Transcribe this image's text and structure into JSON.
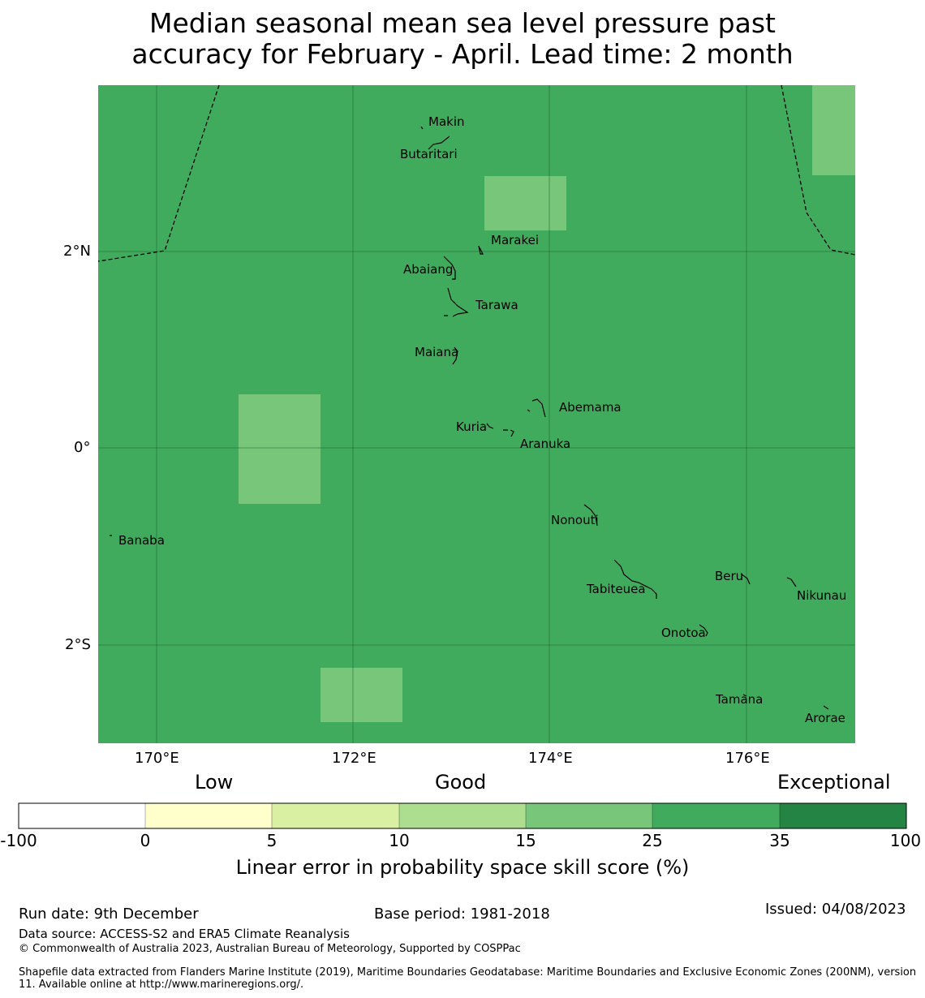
{
  "title_line1": "Median seasonal mean sea level pressure past",
  "title_line2": "accuracy for February - April. Lead time: 2 month",
  "map": {
    "background_color": "#41ab5d",
    "highlight_color": "#78c679",
    "lon_ticks": [
      "170°E",
      "172°E",
      "174°E",
      "176°E"
    ],
    "lat_ticks": [
      "2°N",
      "0°",
      "2°S"
    ],
    "islands": [
      "Makin",
      "Butaritari",
      "Marakei",
      "Abaiang",
      "Tarawa",
      "Maiana",
      "Abemama",
      "Kuria",
      "Aranuka",
      "Nonouti",
      "Banaba",
      "Beru",
      "Tabiteuea",
      "Nikunau",
      "Onotoa",
      "Tamana",
      "Arorae"
    ]
  },
  "colorbar": {
    "category_labels": [
      "Low",
      "Good",
      "Exceptional"
    ],
    "ticks": [
      "-100",
      "0",
      "5",
      "10",
      "15",
      "25",
      "35",
      "100"
    ],
    "colors": [
      "#ffffff",
      "#ffffcc",
      "#d9f0a3",
      "#addd8e",
      "#78c679",
      "#41ab5d",
      "#238443"
    ],
    "title": "Linear error in probability space skill score (%)"
  },
  "footer": {
    "run_date": "Run date: 9th December",
    "base_period": "Base period: 1981-2018",
    "issued": "Issued: 04/08/2023",
    "data_source": "Data source: ACCESS-S2 and ERA5 Climate Reanalysis",
    "copyright": "© Commonwealth of Australia 2023, Australian Bureau of Meteorology, Supported by COSPPac",
    "shapefile": "Shapefile data extracted from Flanders Marine Institute (2019), Maritime Boundaries Geodatabase: Maritime Boundaries and Exclusive Economic Zones (200NM), version 11. Available online at http://www.marineregions.org/."
  }
}
